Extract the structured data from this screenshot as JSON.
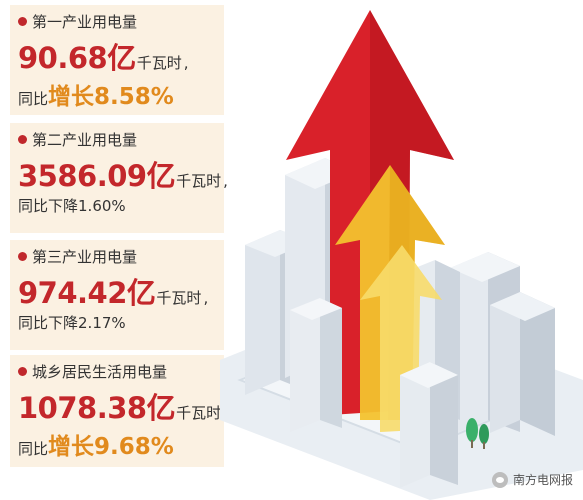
{
  "items": [
    {
      "title": "第一产业用电量",
      "value": "90.68亿",
      "unit": "千瓦时",
      "comma": ",",
      "change_prefix": "同比",
      "change_text": "增长8.58%",
      "direction": "up"
    },
    {
      "title": "第二产业用电量",
      "value": "3586.09亿",
      "unit": "千瓦时",
      "comma": ",",
      "change_prefix": "同比",
      "change_text": "下降1.60%",
      "direction": "down"
    },
    {
      "title": "第三产业用电量",
      "value": "974.42亿",
      "unit": "千瓦时",
      "comma": ",",
      "change_prefix": "同比",
      "change_text": "下降2.17%",
      "direction": "down"
    },
    {
      "title": "城乡居民生活用电量",
      "value": "1078.38亿",
      "unit": "千瓦时",
      "comma": ",",
      "change_prefix": "同比",
      "change_text": "增长9.68%",
      "direction": "up"
    }
  ],
  "watermark": "南方电网报",
  "colors": {
    "value_red": "#c3272b",
    "growth_orange": "#e18a1d",
    "panel_bg": "#fbf1e2",
    "arrow_red": "#d9212a",
    "arrow_yellow": "#f3c22e"
  }
}
